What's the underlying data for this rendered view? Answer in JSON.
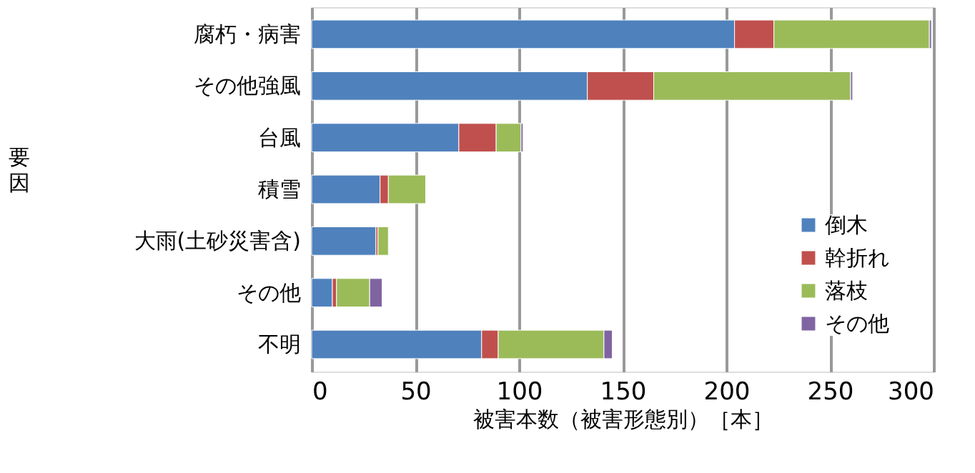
{
  "chart_data": {
    "type": "bar",
    "orientation": "horizontal",
    "stacked": true,
    "categories": [
      "腐朽・病害",
      "その他強風",
      "台風",
      "積雪",
      "大雨(土砂災害含)",
      "その他",
      "不明"
    ],
    "series": [
      {
        "name": "倒木",
        "color": "#4f81bd",
        "values": [
          204,
          133,
          71,
          33,
          31,
          10,
          82
        ]
      },
      {
        "name": "幹折れ",
        "color": "#c0504d",
        "values": [
          19,
          32,
          18,
          4,
          1,
          2,
          8
        ]
      },
      {
        "name": "落枝",
        "color": "#9bbb59",
        "values": [
          75,
          95,
          12,
          18,
          5,
          16,
          51
        ]
      },
      {
        "name": "その他",
        "color": "#8064a2",
        "values": [
          1,
          1,
          1,
          null,
          null,
          6,
          4
        ]
      }
    ],
    "xlabel": "被害本数（被害形態別）［本］",
    "ylabel": "要因",
    "xlim": [
      0,
      300
    ],
    "xticks": [
      0,
      50,
      100,
      150,
      200,
      250,
      300
    ],
    "grid": "x",
    "legend": "bottom right"
  }
}
